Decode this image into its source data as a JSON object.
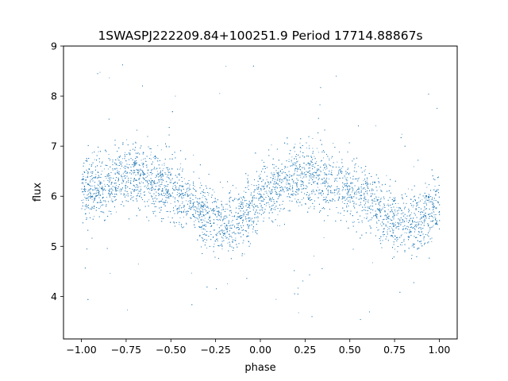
{
  "chart_data": {
    "type": "scatter",
    "title": "1SWASPJ222209.84+100251.9 Period 17714.88867s",
    "xlabel": "phase",
    "ylabel": "flux",
    "xlim": [
      -1.1,
      1.1
    ],
    "ylim": [
      3.15,
      9.0
    ],
    "xticks": [
      -1.0,
      -0.75,
      -0.5,
      -0.25,
      0.0,
      0.25,
      0.5,
      0.75,
      1.0
    ],
    "xtick_labels": [
      "−1.00",
      "−0.75",
      "−0.50",
      "−0.25",
      "0.00",
      "0.25",
      "0.50",
      "0.75",
      "1.00"
    ],
    "yticks": [
      4,
      5,
      6,
      7,
      8,
      9
    ],
    "ytick_labels": [
      "4",
      "5",
      "6",
      "7",
      "8",
      "9"
    ],
    "grid": false,
    "marker_color": "#1f77b4",
    "x_range": [
      -1.0,
      1.0
    ],
    "flux_profile": {
      "phase": [
        -1.0,
        -0.9,
        -0.8,
        -0.7,
        -0.6,
        -0.5,
        -0.4,
        -0.3,
        -0.2,
        -0.1,
        0.0,
        0.1,
        0.2,
        0.3,
        0.4,
        0.5,
        0.6,
        0.7,
        0.8,
        0.9,
        1.0
      ],
      "median_flux": [
        6.05,
        6.2,
        6.38,
        6.45,
        6.35,
        6.15,
        5.95,
        5.65,
        5.4,
        5.6,
        5.95,
        6.2,
        6.4,
        6.45,
        6.3,
        6.1,
        5.9,
        5.6,
        5.4,
        5.55,
        5.8
      ],
      "scatter_sigma": 0.32
    }
  }
}
